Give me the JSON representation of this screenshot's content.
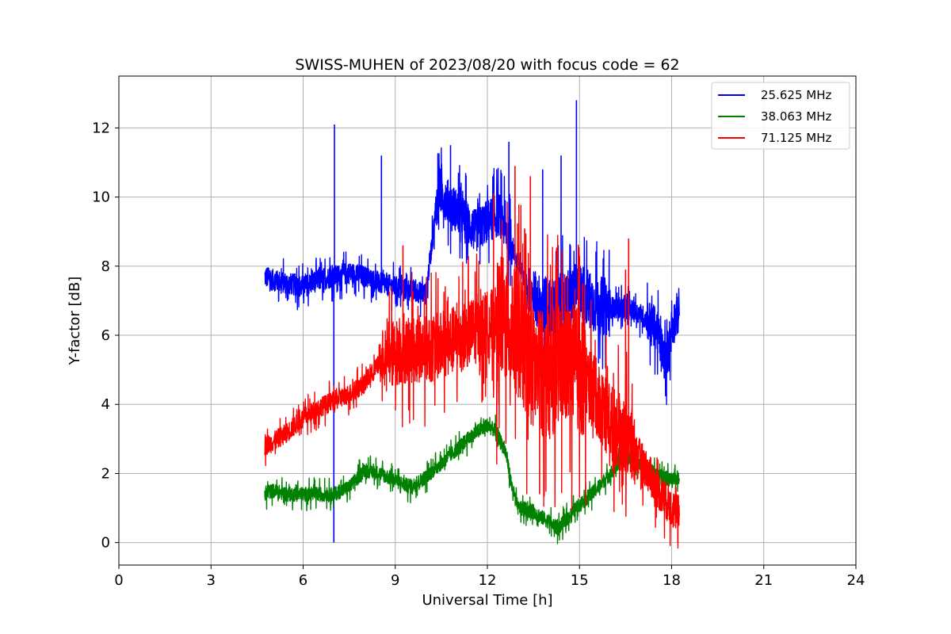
{
  "chart_data": {
    "type": "line",
    "title": "SWISS-MUHEN of 2023/08/20 with focus code = 62",
    "xlabel": "Universal Time [h]",
    "ylabel": "Y-factor [dB]",
    "xlim": [
      0,
      24
    ],
    "ylim": [
      -0.65,
      13.5
    ],
    "xticks": [
      0,
      3,
      6,
      9,
      12,
      15,
      18,
      21,
      24
    ],
    "yticks": [
      0,
      2,
      4,
      6,
      8,
      10,
      12
    ],
    "grid": true,
    "legend_position": "top-right",
    "x_start": 4.75,
    "x_end": 18.25,
    "series": [
      {
        "name": "25.625 MHz",
        "color": "#0000ff",
        "points": [
          [
            4.75,
            7.7
          ],
          [
            5.0,
            7.6
          ],
          [
            5.5,
            7.5
          ],
          [
            6.0,
            7.4
          ],
          [
            6.5,
            7.6
          ],
          [
            7.0,
            7.7
          ],
          [
            7.5,
            7.8
          ],
          [
            8.0,
            7.7
          ],
          [
            8.5,
            7.5
          ],
          [
            9.0,
            7.4
          ],
          [
            9.5,
            7.3
          ],
          [
            10.0,
            7.2
          ],
          [
            10.4,
            10.2
          ],
          [
            10.8,
            9.8
          ],
          [
            11.2,
            9.4
          ],
          [
            11.6,
            9.0
          ],
          [
            12.0,
            9.3
          ],
          [
            12.4,
            9.5
          ],
          [
            12.8,
            8.6
          ],
          [
            13.2,
            7.6
          ],
          [
            13.6,
            7.0
          ],
          [
            14.0,
            6.8
          ],
          [
            14.5,
            7.0
          ],
          [
            15.0,
            7.3
          ],
          [
            15.5,
            6.9
          ],
          [
            16.0,
            6.8
          ],
          [
            16.5,
            6.8
          ],
          [
            17.0,
            6.6
          ],
          [
            17.5,
            6.2
          ],
          [
            17.8,
            5.2
          ],
          [
            18.0,
            6.2
          ],
          [
            18.25,
            6.8
          ]
        ],
        "spikes": [
          [
            7.02,
            12.1
          ],
          [
            7.0,
            0.0
          ],
          [
            14.9,
            12.8
          ],
          [
            8.55,
            11.2
          ],
          [
            10.8,
            11.5
          ],
          [
            12.7,
            11.6
          ],
          [
            14.4,
            11.2
          ],
          [
            13.8,
            10.8
          ]
        ]
      },
      {
        "name": "38.063 MHz",
        "color": "#008000",
        "points": [
          [
            4.75,
            1.4
          ],
          [
            5.0,
            1.5
          ],
          [
            5.5,
            1.4
          ],
          [
            6.0,
            1.4
          ],
          [
            6.5,
            1.4
          ],
          [
            7.0,
            1.4
          ],
          [
            7.5,
            1.6
          ],
          [
            8.0,
            2.1
          ],
          [
            8.5,
            2.0
          ],
          [
            9.0,
            1.8
          ],
          [
            9.5,
            1.6
          ],
          [
            10.0,
            1.9
          ],
          [
            10.5,
            2.3
          ],
          [
            11.0,
            2.7
          ],
          [
            11.5,
            3.1
          ],
          [
            12.0,
            3.4
          ],
          [
            12.3,
            3.2
          ],
          [
            12.6,
            2.6
          ],
          [
            12.8,
            1.6
          ],
          [
            13.0,
            1.0
          ],
          [
            13.5,
            0.9
          ],
          [
            14.0,
            0.6
          ],
          [
            14.3,
            0.4
          ],
          [
            14.6,
            0.7
          ],
          [
            15.0,
            1.1
          ],
          [
            15.5,
            1.5
          ],
          [
            16.0,
            2.0
          ],
          [
            16.5,
            2.5
          ],
          [
            17.0,
            2.3
          ],
          [
            17.5,
            2.0
          ],
          [
            18.0,
            1.8
          ],
          [
            18.25,
            1.9
          ]
        ],
        "spikes": []
      },
      {
        "name": "71.125 MHz",
        "color": "#ff0000",
        "points": [
          [
            4.75,
            2.8
          ],
          [
            5.0,
            2.9
          ],
          [
            5.5,
            3.2
          ],
          [
            6.0,
            3.6
          ],
          [
            6.5,
            3.9
          ],
          [
            7.0,
            4.1
          ],
          [
            7.5,
            4.3
          ],
          [
            8.0,
            4.6
          ],
          [
            8.5,
            5.2
          ],
          [
            9.0,
            5.5
          ],
          [
            9.5,
            5.6
          ],
          [
            10.0,
            5.6
          ],
          [
            10.5,
            5.7
          ],
          [
            11.0,
            5.9
          ],
          [
            11.5,
            6.1
          ],
          [
            12.0,
            6.3
          ],
          [
            12.5,
            6.5
          ],
          [
            13.0,
            6.0
          ],
          [
            13.5,
            5.0
          ],
          [
            14.0,
            4.8
          ],
          [
            14.5,
            5.2
          ],
          [
            15.0,
            5.0
          ],
          [
            15.5,
            4.3
          ],
          [
            16.0,
            3.5
          ],
          [
            16.5,
            3.0
          ],
          [
            17.0,
            2.4
          ],
          [
            17.5,
            1.6
          ],
          [
            18.0,
            1.0
          ],
          [
            18.25,
            0.8
          ]
        ],
        "spikes": [
          [
            9.25,
            8.6
          ],
          [
            12.9,
            10.9
          ],
          [
            13.4,
            10.6
          ],
          [
            12.2,
            10.1
          ],
          [
            16.6,
            8.8
          ],
          [
            16.5,
            7.9
          ],
          [
            15.0,
            8.3
          ],
          [
            18.2,
            0.0
          ],
          [
            13.7,
            1.4
          ]
        ]
      }
    ]
  }
}
